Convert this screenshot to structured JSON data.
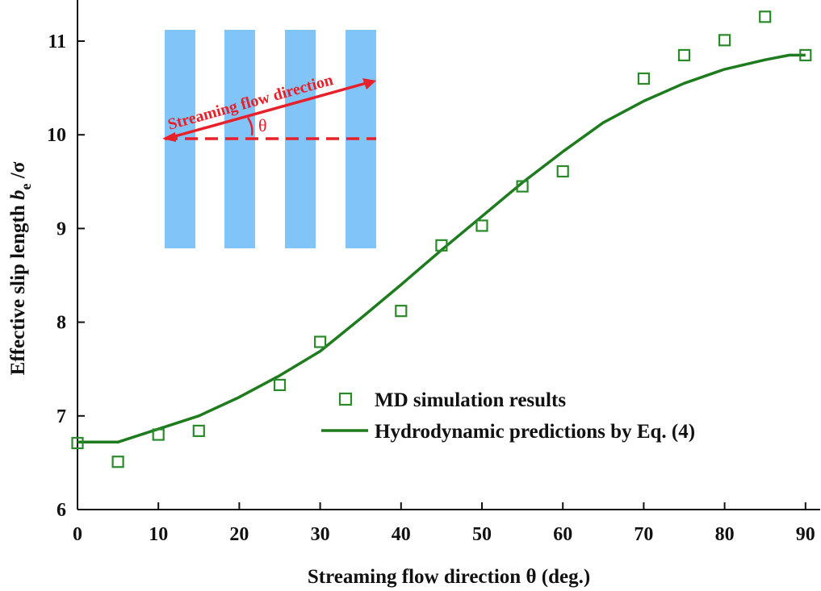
{
  "chart_data": {
    "type": "scatter",
    "xlabel": "Streaming flow direction θ (deg.)",
    "ylabel_main": "Effective slip length ",
    "ylabel_var": "b",
    "ylabel_sub": "e",
    "ylabel_tail": " /σ",
    "xlim": [
      0,
      92
    ],
    "ylim": [
      6,
      11.4
    ],
    "xticks": [
      0,
      10,
      20,
      30,
      40,
      50,
      60,
      70,
      80,
      90
    ],
    "yticks": [
      6,
      7,
      8,
      9,
      10,
      11
    ],
    "grid": false,
    "legend_position": "bottom-right",
    "series": [
      {
        "name": "MD simulation results",
        "kind": "markers",
        "marker": "square",
        "color": "#2a8a2a",
        "x": [
          0,
          5,
          10,
          15,
          25,
          30,
          40,
          45,
          50,
          55,
          60,
          70,
          75,
          80,
          85,
          90
        ],
        "y": [
          6.71,
          6.51,
          6.8,
          6.84,
          7.33,
          7.79,
          8.12,
          8.82,
          9.03,
          9.45,
          9.61,
          10.6,
          10.85,
          11.01,
          11.26,
          10.85
        ]
      },
      {
        "name": "Hydrodynamic predictions by Eq. (4)",
        "kind": "line",
        "color": "#1e7b1e",
        "x": [
          0,
          5,
          10,
          15,
          20,
          25,
          30,
          35,
          40,
          45,
          50,
          55,
          60,
          65,
          70,
          75,
          80,
          85,
          88,
          90
        ],
        "y": [
          6.72,
          6.72,
          6.86,
          7.0,
          7.2,
          7.43,
          7.69,
          8.04,
          8.4,
          8.77,
          9.13,
          9.49,
          9.82,
          10.13,
          10.36,
          10.55,
          10.7,
          10.8,
          10.85,
          10.85
        ]
      }
    ],
    "inset": {
      "label": "Streaming flow direction",
      "angle_symbol": "θ",
      "stripe_color": "#80c4f8",
      "arrow_color": "#e8202a"
    }
  }
}
